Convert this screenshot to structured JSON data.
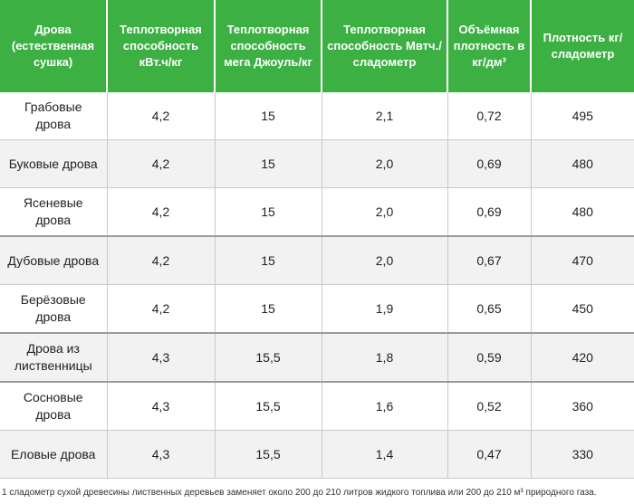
{
  "table": {
    "headers": [
      "Дрова (естественная сушка)",
      "Теплотворная способность кВт.ч/кг",
      "Теплотворная способность мега Джоуль/кг",
      "Теплотворная способность Мвтч./сладометр",
      "Объёмная плотность в кг/дм³",
      "Плотность кг/сладометр"
    ],
    "rows": [
      [
        "Грабовые дрова",
        "4,2",
        "15",
        "2,1",
        "0,72",
        "495"
      ],
      [
        "Буковые дрова",
        "4,2",
        "15",
        "2,0",
        "0,69",
        "480"
      ],
      [
        "Ясеневые дрова",
        "4,2",
        "15",
        "2,0",
        "0,69",
        "480"
      ],
      [
        "Дубовые дрова",
        "4,2",
        "15",
        "2,0",
        "0,67",
        "470"
      ],
      [
        "Берёзовые дрова",
        "4,2",
        "15",
        "1,9",
        "0,65",
        "450"
      ],
      [
        "Дрова из лиственницы",
        "4,3",
        "15,5",
        "1,8",
        "0,59",
        "420"
      ],
      [
        "Сосновые дрова",
        "4,3",
        "15,5",
        "1,6",
        "0,52",
        "360"
      ],
      [
        "Еловые дрова",
        "4,3",
        "15,5",
        "1,4",
        "0,47",
        "330"
      ]
    ]
  },
  "footnote": "1 сладометр сухой древесины лиственных деревьев заменяет около 200 до 210 литров жидкого топлива или 200 до 210 м³ природного газа."
}
